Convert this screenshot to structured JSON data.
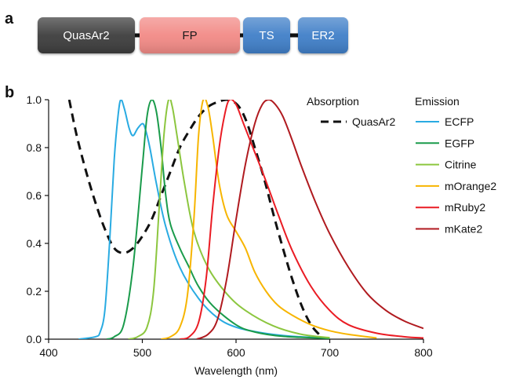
{
  "panel_a": {
    "label": "a",
    "segments": [
      {
        "label": "QuasAr2",
        "fill": "#3d3d3d",
        "text_color": "#ffffff"
      },
      {
        "label": "FP",
        "fill": "#f28a86",
        "text_color": "#1a1a1a"
      },
      {
        "label": "TS",
        "fill": "#3f7fc8",
        "text_color": "#ffffff"
      },
      {
        "label": "ER2",
        "fill": "#3f7fc8",
        "text_color": "#ffffff"
      }
    ],
    "linker_color": "#111111"
  },
  "panel_b": {
    "label": "b",
    "legend": {
      "absorption_header": "Absorption",
      "emission_header": "Emission"
    }
  },
  "chart_data": {
    "type": "line",
    "xlabel": "Wavelength (nm)",
    "ylabel": "",
    "xlim": [
      400,
      800
    ],
    "ylim": [
      0,
      1.0
    ],
    "xticks": [
      "400",
      "500",
      "600",
      "700",
      "800"
    ],
    "yticks": [
      "0.0",
      "0.2",
      "0.4",
      "0.6",
      "0.8",
      "1.0"
    ],
    "grid": false,
    "legend_position": "top-right",
    "series": [
      {
        "name": "QuasAr2",
        "group": "Absorption",
        "color": "#111111",
        "dashed": true,
        "points": [
          [
            422,
            1.0
          ],
          [
            430,
            0.85
          ],
          [
            440,
            0.7
          ],
          [
            450,
            0.57
          ],
          [
            460,
            0.46
          ],
          [
            470,
            0.38
          ],
          [
            480,
            0.36
          ],
          [
            490,
            0.38
          ],
          [
            500,
            0.43
          ],
          [
            510,
            0.5
          ],
          [
            520,
            0.6
          ],
          [
            530,
            0.7
          ],
          [
            540,
            0.8
          ],
          [
            550,
            0.87
          ],
          [
            560,
            0.93
          ],
          [
            570,
            0.97
          ],
          [
            580,
            0.99
          ],
          [
            590,
            1.0
          ],
          [
            598,
            0.99
          ],
          [
            605,
            0.96
          ],
          [
            612,
            0.9
          ],
          [
            620,
            0.8
          ],
          [
            630,
            0.67
          ],
          [
            640,
            0.52
          ],
          [
            650,
            0.38
          ],
          [
            660,
            0.25
          ],
          [
            670,
            0.14
          ],
          [
            680,
            0.06
          ],
          [
            690,
            0.015
          ],
          [
            695,
            0.0
          ]
        ]
      },
      {
        "name": "ECFP",
        "group": "Emission",
        "color": "#29abe2",
        "dashed": false,
        "points": [
          [
            432,
            0.0
          ],
          [
            450,
            0.01
          ],
          [
            455,
            0.03
          ],
          [
            460,
            0.12
          ],
          [
            465,
            0.4
          ],
          [
            470,
            0.75
          ],
          [
            474,
            0.93
          ],
          [
            477,
            1.0
          ],
          [
            481,
            0.96
          ],
          [
            486,
            0.88
          ],
          [
            490,
            0.85
          ],
          [
            495,
            0.88
          ],
          [
            500,
            0.9
          ],
          [
            503,
            0.88
          ],
          [
            508,
            0.8
          ],
          [
            515,
            0.65
          ],
          [
            525,
            0.47
          ],
          [
            540,
            0.3
          ],
          [
            560,
            0.17
          ],
          [
            580,
            0.09
          ],
          [
            600,
            0.05
          ],
          [
            630,
            0.025
          ],
          [
            660,
            0.012
          ],
          [
            700,
            0.004
          ]
        ]
      },
      {
        "name": "EGFP",
        "group": "Emission",
        "color": "#1a9b4b",
        "dashed": false,
        "points": [
          [
            462,
            0.0
          ],
          [
            470,
            0.01
          ],
          [
            480,
            0.06
          ],
          [
            490,
            0.3
          ],
          [
            500,
            0.72
          ],
          [
            505,
            0.93
          ],
          [
            510,
            1.0
          ],
          [
            515,
            0.95
          ],
          [
            520,
            0.8
          ],
          [
            525,
            0.6
          ],
          [
            530,
            0.48
          ],
          [
            540,
            0.38
          ],
          [
            550,
            0.3
          ],
          [
            560,
            0.22
          ],
          [
            575,
            0.14
          ],
          [
            600,
            0.06
          ],
          [
            620,
            0.03
          ],
          [
            650,
            0.012
          ],
          [
            700,
            0.003
          ]
        ]
      },
      {
        "name": "Citrine",
        "group": "Emission",
        "color": "#8cc63f",
        "dashed": false,
        "points": [
          [
            485,
            0.0
          ],
          [
            495,
            0.01
          ],
          [
            505,
            0.05
          ],
          [
            512,
            0.2
          ],
          [
            518,
            0.55
          ],
          [
            523,
            0.85
          ],
          [
            528,
            1.0
          ],
          [
            532,
            0.97
          ],
          [
            537,
            0.85
          ],
          [
            545,
            0.65
          ],
          [
            555,
            0.45
          ],
          [
            570,
            0.3
          ],
          [
            590,
            0.19
          ],
          [
            610,
            0.12
          ],
          [
            640,
            0.055
          ],
          [
            670,
            0.02
          ],
          [
            700,
            0.006
          ]
        ]
      },
      {
        "name": "mOrange2",
        "group": "Emission",
        "color": "#f7b500",
        "dashed": false,
        "points": [
          [
            520,
            0.0
          ],
          [
            530,
            0.01
          ],
          [
            540,
            0.05
          ],
          [
            548,
            0.18
          ],
          [
            555,
            0.5
          ],
          [
            560,
            0.85
          ],
          [
            565,
            1.0
          ],
          [
            570,
            0.97
          ],
          [
            575,
            0.85
          ],
          [
            582,
            0.65
          ],
          [
            590,
            0.52
          ],
          [
            600,
            0.45
          ],
          [
            610,
            0.38
          ],
          [
            620,
            0.28
          ],
          [
            632,
            0.2
          ],
          [
            645,
            0.14
          ],
          [
            660,
            0.1
          ],
          [
            680,
            0.06
          ],
          [
            700,
            0.035
          ],
          [
            720,
            0.02
          ],
          [
            740,
            0.01
          ],
          [
            750,
            0.005
          ]
        ]
      },
      {
        "name": "mRuby2",
        "group": "Emission",
        "color": "#ea1c24",
        "dashed": false,
        "points": [
          [
            540,
            0.0
          ],
          [
            550,
            0.01
          ],
          [
            560,
            0.07
          ],
          [
            568,
            0.25
          ],
          [
            575,
            0.55
          ],
          [
            582,
            0.8
          ],
          [
            588,
            0.94
          ],
          [
            593,
            1.0
          ],
          [
            600,
            0.98
          ],
          [
            608,
            0.9
          ],
          [
            618,
            0.8
          ],
          [
            630,
            0.68
          ],
          [
            645,
            0.52
          ],
          [
            660,
            0.37
          ],
          [
            680,
            0.22
          ],
          [
            700,
            0.12
          ],
          [
            720,
            0.06
          ],
          [
            750,
            0.025
          ],
          [
            780,
            0.01
          ],
          [
            800,
            0.005
          ]
        ]
      },
      {
        "name": "mKate2",
        "group": "Emission",
        "color": "#b01a1f",
        "dashed": false,
        "points": [
          [
            558,
            0.0
          ],
          [
            570,
            0.02
          ],
          [
            580,
            0.08
          ],
          [
            590,
            0.25
          ],
          [
            600,
            0.5
          ],
          [
            610,
            0.73
          ],
          [
            620,
            0.9
          ],
          [
            628,
            0.98
          ],
          [
            635,
            1.0
          ],
          [
            642,
            0.98
          ],
          [
            650,
            0.93
          ],
          [
            660,
            0.83
          ],
          [
            670,
            0.72
          ],
          [
            685,
            0.57
          ],
          [
            700,
            0.44
          ],
          [
            720,
            0.3
          ],
          [
            740,
            0.19
          ],
          [
            760,
            0.12
          ],
          [
            780,
            0.075
          ],
          [
            800,
            0.045
          ]
        ]
      }
    ]
  }
}
